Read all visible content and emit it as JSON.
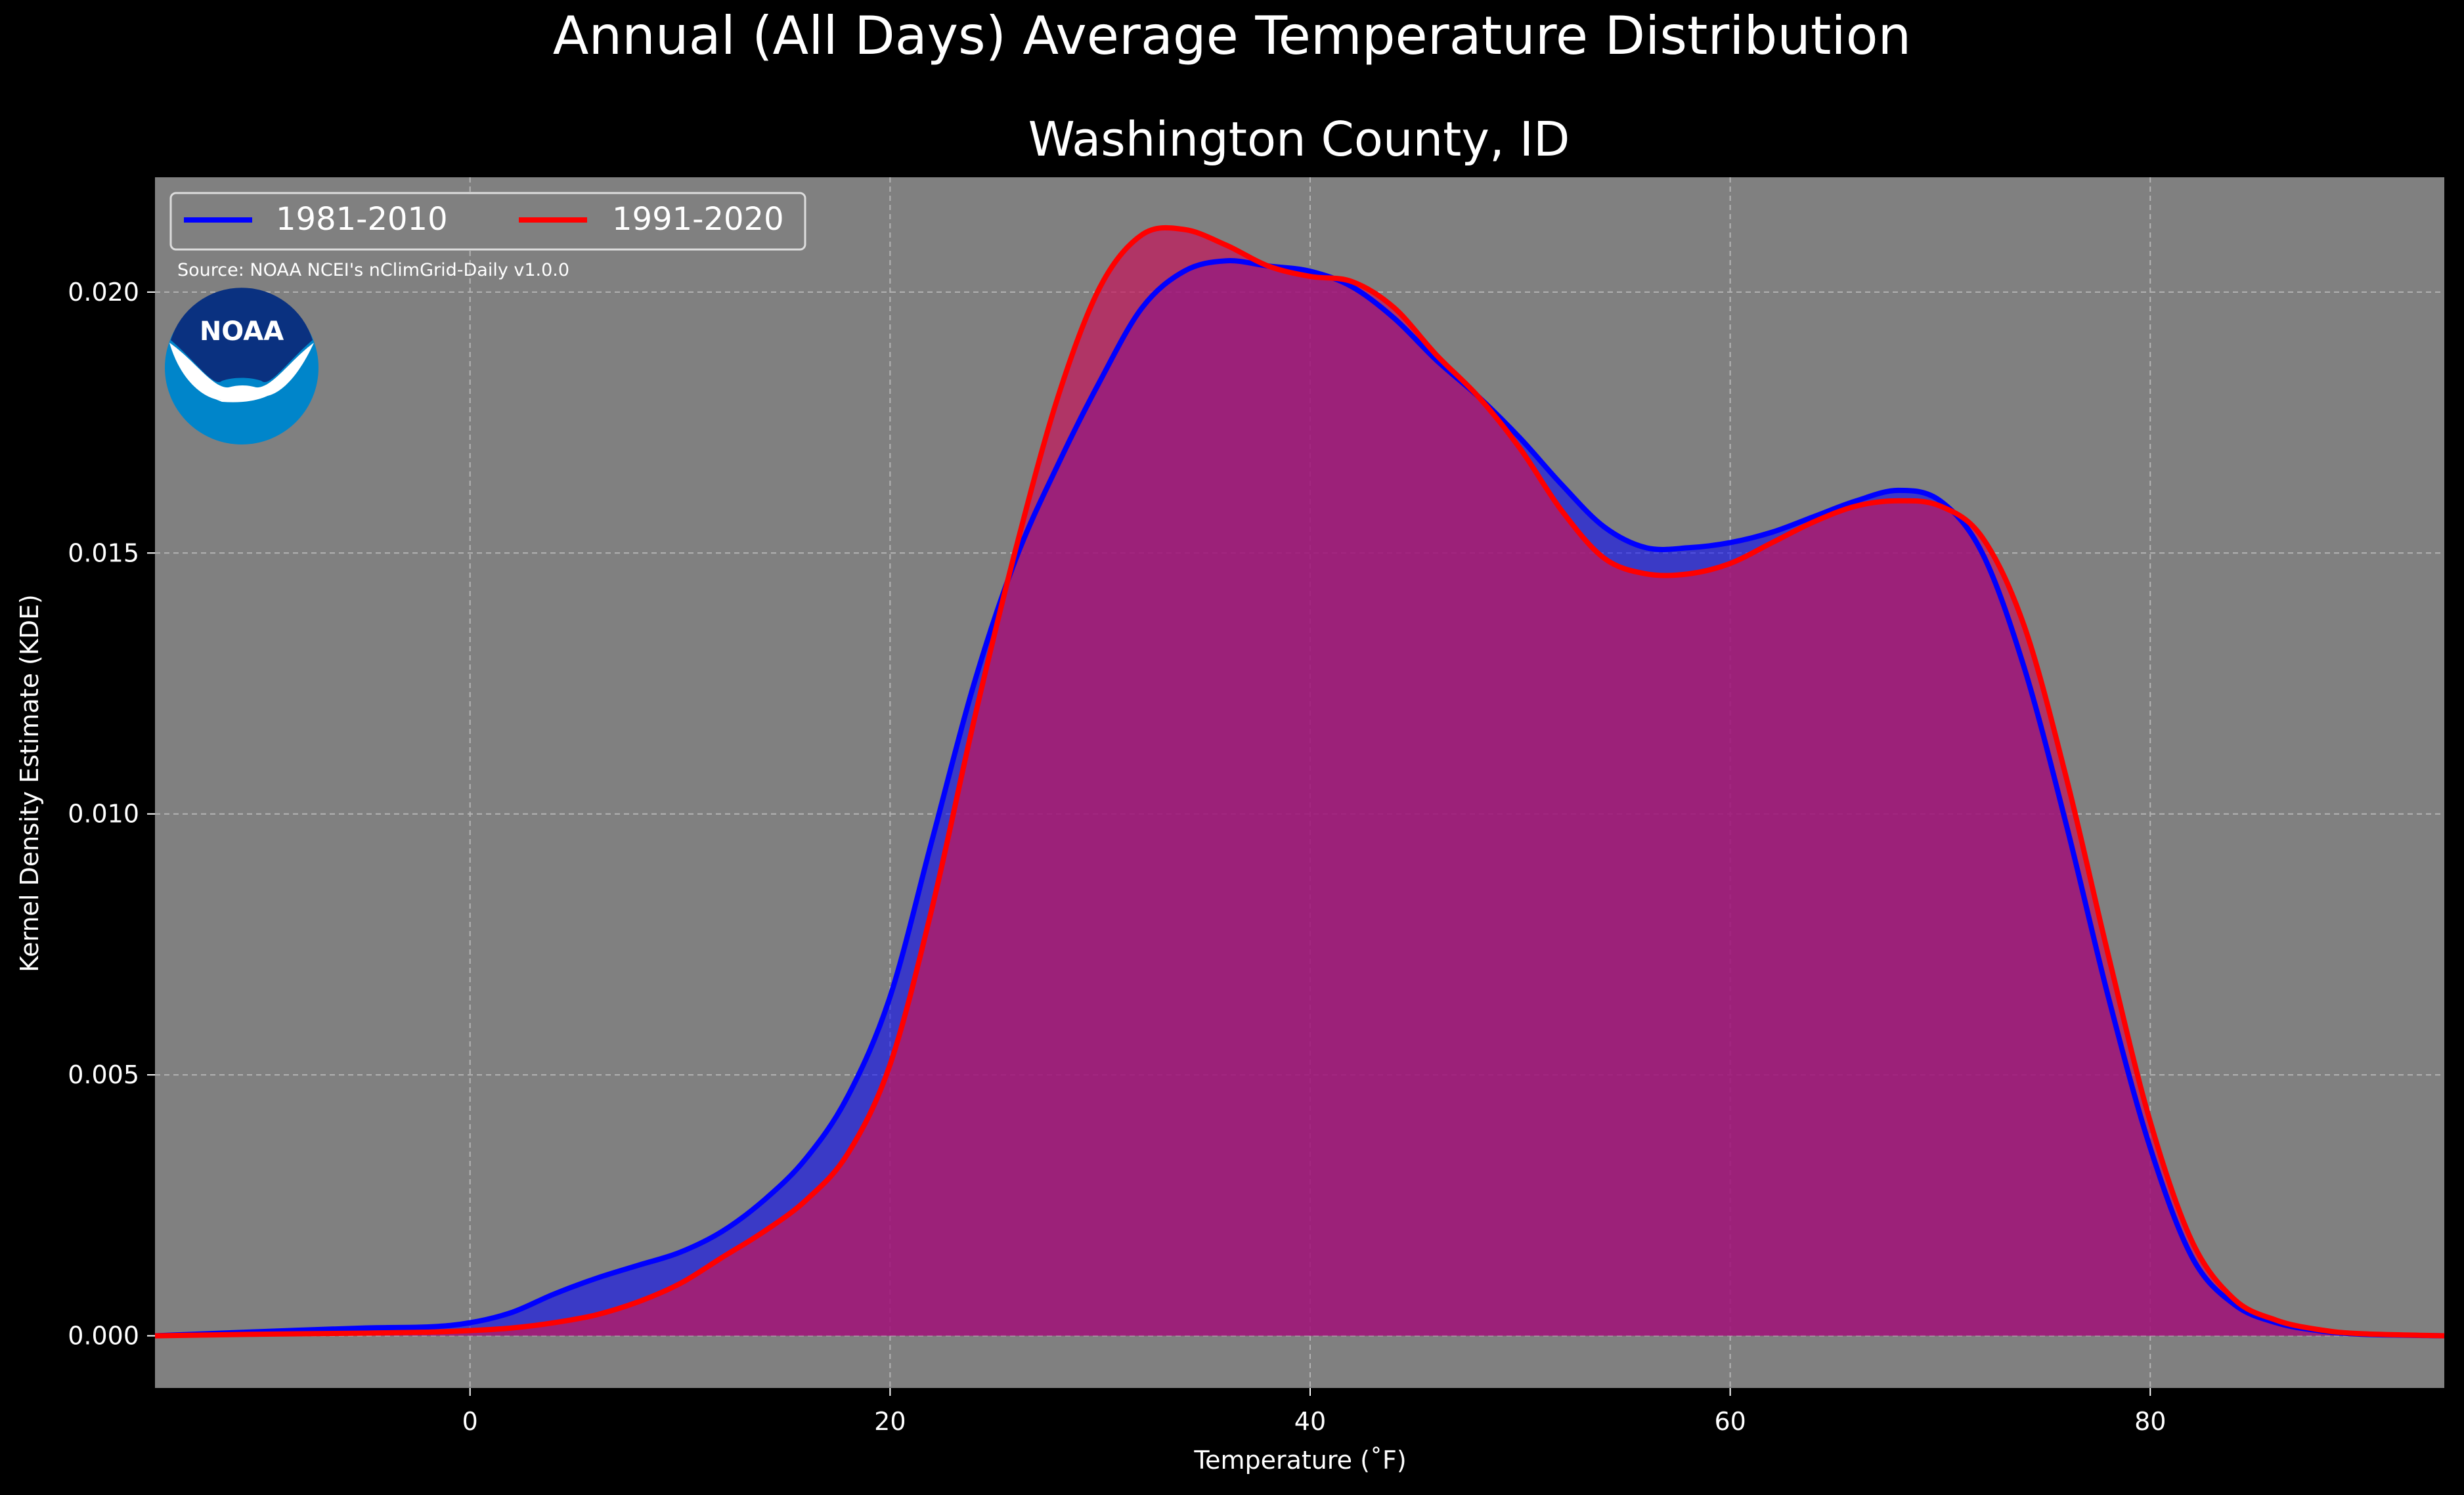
{
  "chart_data": {
    "type": "area",
    "suptitle": "Annual (All Days) Average Temperature Distribution",
    "title": "Washington County, ID",
    "xlabel": "Temperature ($^\\circ$F)",
    "xlabel_display": "Temperature (˚F)",
    "ylabel": "Kernel Density Estimate (KDE)",
    "xlim": [
      -15,
      94
    ],
    "ylim": [
      -0.001,
      0.0222
    ],
    "xticks": [
      0,
      20,
      40,
      60,
      80
    ],
    "xtick_labels": [
      "0",
      "20",
      "40",
      "60",
      "80"
    ],
    "yticks": [
      0.0,
      0.005,
      0.01,
      0.015,
      0.02
    ],
    "ytick_labels": [
      "0.000",
      "0.005",
      "0.010",
      "0.015",
      "0.020"
    ],
    "grid": true,
    "legend_position": "top-left",
    "annotation": "Source: NOAA NCEI's nClimGrid-Daily v1.0.0",
    "logo_text": "NOAA",
    "colors": {
      "figure_background": "#000000",
      "axes_background": "#808080",
      "text": "#ffffff",
      "grid": "#b3b3b3",
      "logo_dark": "#0a3180",
      "logo_light": "#0085ca"
    },
    "series": [
      {
        "name": "1981-2010",
        "color": "#0000ff",
        "fill": "#0000ff",
        "x": [
          -15,
          -10,
          -5,
          -2,
          0,
          2,
          4,
          6,
          8,
          10,
          12,
          14,
          16,
          18,
          20,
          22,
          24,
          26,
          28,
          30,
          32,
          34,
          36,
          38,
          40,
          42,
          44,
          46,
          48,
          50,
          52,
          54,
          56,
          58,
          60,
          62,
          64,
          66,
          68,
          70,
          72,
          74,
          76,
          78,
          80,
          82,
          84,
          86,
          88,
          90,
          94
        ],
        "y": [
          0.0,
          8e-05,
          0.00015,
          0.00017,
          0.00025,
          0.00045,
          0.0008,
          0.0011,
          0.00135,
          0.0016,
          0.002,
          0.0026,
          0.0034,
          0.0046,
          0.0065,
          0.0095,
          0.0125,
          0.0149,
          0.0167,
          0.0183,
          0.0197,
          0.0204,
          0.0206,
          0.0205,
          0.0204,
          0.0201,
          0.0195,
          0.0187,
          0.018,
          0.0172,
          0.0163,
          0.0155,
          0.0151,
          0.0151,
          0.0152,
          0.0154,
          0.0157,
          0.016,
          0.0162,
          0.016,
          0.015,
          0.0128,
          0.0098,
          0.0065,
          0.0036,
          0.0015,
          0.0006,
          0.00025,
          0.0001,
          3e-05,
          0.0
        ]
      },
      {
        "name": "1991-2020",
        "color": "#ff0000",
        "fill": "#c2185b",
        "x": [
          -15,
          -10,
          -5,
          -2,
          0,
          2,
          4,
          6,
          8,
          10,
          12,
          14,
          16,
          18,
          20,
          22,
          24,
          26,
          28,
          30,
          32,
          34,
          36,
          38,
          40,
          42,
          44,
          46,
          48,
          50,
          52,
          54,
          56,
          58,
          60,
          62,
          64,
          66,
          68,
          70,
          72,
          74,
          76,
          78,
          80,
          82,
          84,
          86,
          88,
          90,
          94
        ],
        "y": [
          0.0,
          3e-05,
          5e-05,
          7e-05,
          0.0001,
          0.00015,
          0.00025,
          0.0004,
          0.00065,
          0.001,
          0.0015,
          0.002,
          0.0026,
          0.0035,
          0.0052,
          0.0082,
          0.0118,
          0.0151,
          0.018,
          0.0201,
          0.0211,
          0.0212,
          0.0209,
          0.0205,
          0.0203,
          0.0202,
          0.0197,
          0.0188,
          0.018,
          0.017,
          0.0158,
          0.0149,
          0.0146,
          0.0146,
          0.0148,
          0.0152,
          0.0156,
          0.0159,
          0.016,
          0.0159,
          0.0153,
          0.0136,
          0.0107,
          0.0073,
          0.0041,
          0.0018,
          0.0007,
          0.0003,
          0.00012,
          4e-05,
          0.0
        ]
      }
    ]
  }
}
